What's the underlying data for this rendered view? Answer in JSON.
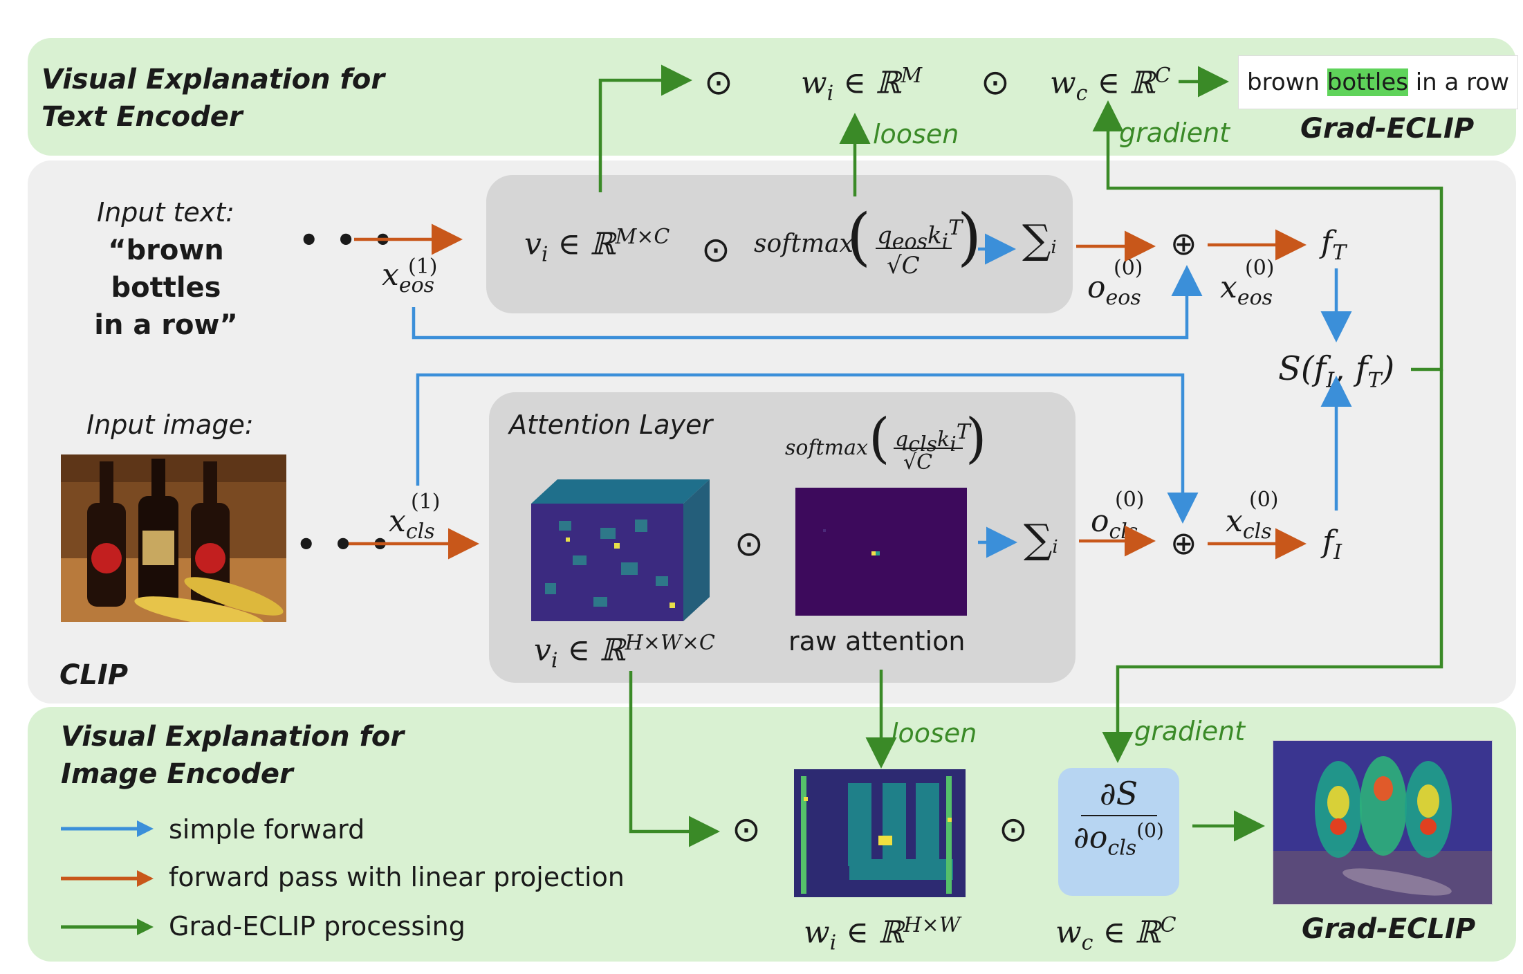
{
  "text_panel": {
    "title": "Visual Explanation for\nText Encoder"
  },
  "image_panel": {
    "title": "Visual Explanation for\nImage Encoder"
  },
  "clip_label": "CLIP",
  "input_text": {
    "label": "Input text:",
    "quote": "“brown bottles\nin a row”"
  },
  "input_image": {
    "label": "Input image:"
  },
  "attention_layer": {
    "label": "Attention Layer",
    "raw_attention": "raw attention"
  },
  "text_output": {
    "words": [
      "brown",
      "bottles",
      "in a row"
    ],
    "highlighted": "bottles",
    "caption": "Grad-ECLIP"
  },
  "image_output": {
    "caption": "Grad-ECLIP"
  },
  "annotations": {
    "loosen_top": "loosen",
    "gradient_top": "gradient",
    "loosen_bottom": "loosen",
    "gradient_bottom": "gradient"
  },
  "legend": [
    {
      "label": "simple forward",
      "color": "#3b8fd9"
    },
    {
      "label": "forward pass with linear projection",
      "color": "#c8571a"
    },
    {
      "label": "Grad-ECLIP processing",
      "color": "#3a8a27"
    }
  ],
  "math": {
    "dots": "• • •",
    "odot": "⊙",
    "oplus": "⊕",
    "sum": "∑",
    "sum_sub": "i",
    "softmax": "softmax",
    "vi_text": "v_i ∈ ℝ^(M×C)",
    "wi_text": "w_i ∈ ℝ^M",
    "wc_text": "w_c ∈ ℝ^C",
    "vi_img": "v_i ∈ ℝ^(H×W×C)",
    "wi_img": "w_i ∈ ℝ^(H×W)",
    "wc_img": "w_c ∈ ℝ^C",
    "fT": "f_T",
    "fI": "f_I",
    "S": "S(f_I, f_T)"
  },
  "colors": {
    "blue": "#3b8fd9",
    "orange": "#c8571a",
    "green": "#3a8a27",
    "panel_green": "#d9f1d2",
    "panel_grey": "#efefef"
  }
}
